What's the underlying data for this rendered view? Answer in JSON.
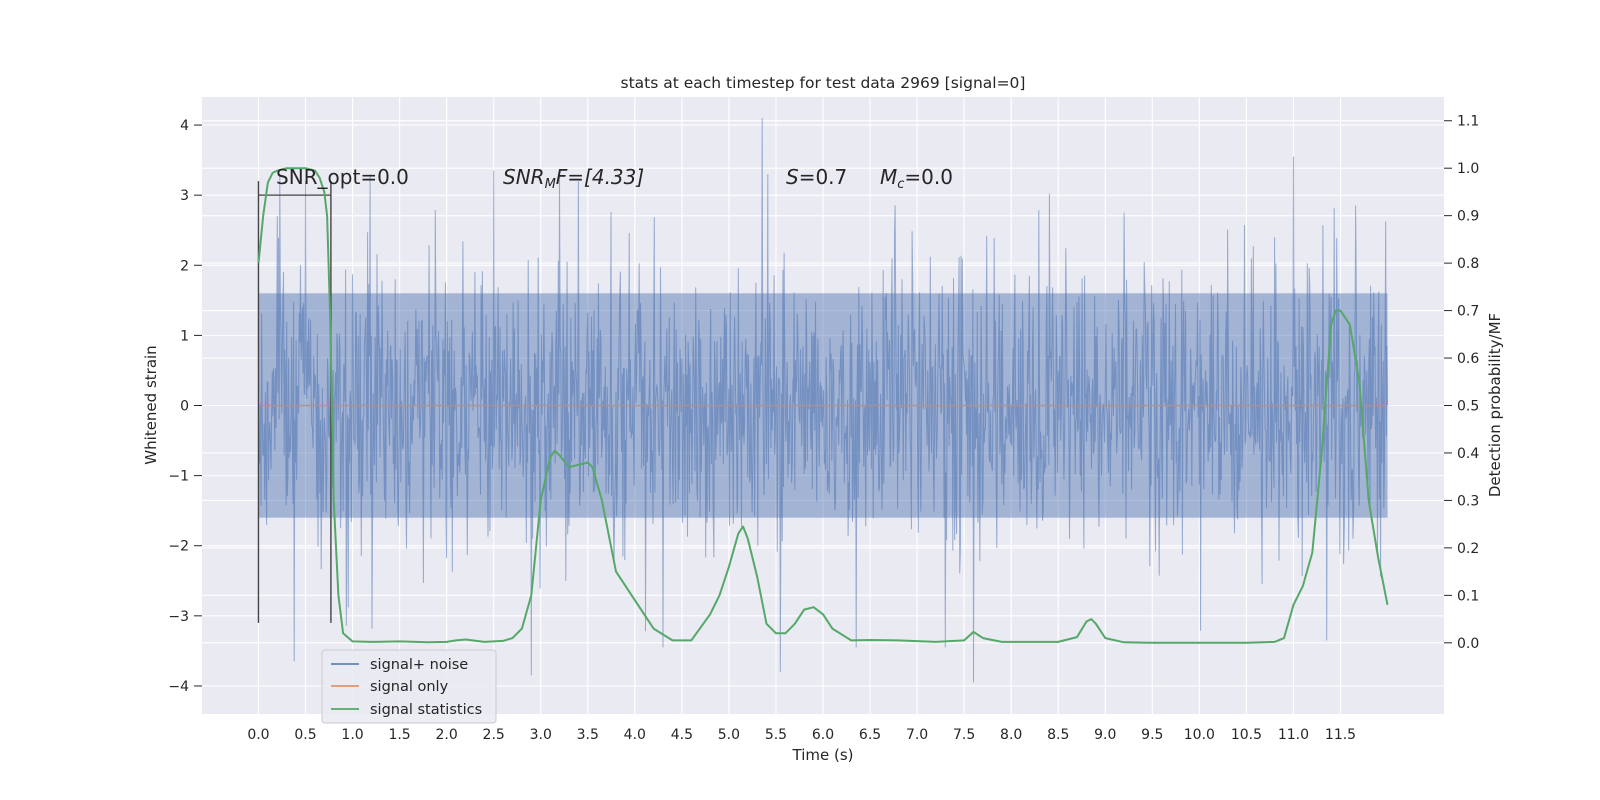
{
  "chart_data": {
    "type": "line",
    "title": "stats at each timestep for test data 2969 [signal=0]",
    "xlabel": "Time (s)",
    "ylabel": "Whitened strain",
    "ylabel_right": "Detection probability/MF",
    "xlim": [
      -0.6,
      12.6
    ],
    "ylim": [
      -4.4,
      4.4
    ],
    "ylim_right": [
      -0.15,
      1.15
    ],
    "x_ticks": [
      "0.0",
      "0.5",
      "1.0",
      "1.5",
      "2.0",
      "2.5",
      "3.0",
      "3.5",
      "4.0",
      "4.5",
      "5.0",
      "5.5",
      "6.0",
      "6.5",
      "7.0",
      "7.5",
      "8.0",
      "8.5",
      "9.0",
      "9.5",
      "10.0",
      "10.5",
      "11.0",
      "11.5"
    ],
    "y_ticks": [
      "4",
      "3",
      "2",
      "1",
      "0",
      "−1",
      "−2",
      "−3",
      "−4"
    ],
    "y_ticks_right": [
      "1.1",
      "1.0",
      "0.9",
      "0.8",
      "0.7",
      "0.6",
      "0.5",
      "0.4",
      "0.3",
      "0.2",
      "0.1",
      "0.0"
    ],
    "grid": true,
    "legend_position": "lower-left",
    "annotations": {
      "snr_opt": "SNR_opt=0.0",
      "snr_mf_italic": "SNR",
      "snr_mf_sub": "M",
      "snr_mf_rest": "F=[4.33]",
      "s_italic": "S",
      "s_rest": "=0.7",
      "mc_italic": "M",
      "mc_sub": "c",
      "mc_rest": "=0.0"
    },
    "markers": {
      "vertical_lines_x": [
        0.0,
        0.77
      ],
      "vertical_line_ylim": [
        -3.1,
        3.2
      ],
      "bracket_y": 3.0
    },
    "series": [
      {
        "name": "signal+ noise",
        "color": "#4c72b0",
        "description_values": "noise band",
        "x_range": [
          0.0,
          12.0
        ],
        "envelope_typical": [
          -1.6,
          1.6
        ],
        "extremes": [
          {
            "x": 0.2,
            "y": 2.7
          },
          {
            "x": 0.38,
            "y": -3.65
          },
          {
            "x": 0.5,
            "y": 3.2
          },
          {
            "x": 2.5,
            "y": 3.35
          },
          {
            "x": 2.9,
            "y": -3.85
          },
          {
            "x": 3.2,
            "y": 3.3
          },
          {
            "x": 3.4,
            "y": 3.2
          },
          {
            "x": 4.3,
            "y": -3.45
          },
          {
            "x": 5.35,
            "y": 4.1
          },
          {
            "x": 5.55,
            "y": -3.8
          },
          {
            "x": 6.35,
            "y": -3.45
          },
          {
            "x": 7.6,
            "y": -3.95
          },
          {
            "x": 7.3,
            "y": -3.45
          },
          {
            "x": 11.0,
            "y": 3.55
          },
          {
            "x": 11.35,
            "y": -3.35
          }
        ]
      },
      {
        "name": "signal only",
        "color": "#dd8452",
        "x": [
          0.0,
          12.0
        ],
        "y": [
          0.0,
          0.0
        ]
      },
      {
        "name": "signal statistics",
        "color": "#55a868",
        "axis": "right",
        "x": [
          0.0,
          0.05,
          0.1,
          0.15,
          0.2,
          0.3,
          0.4,
          0.5,
          0.6,
          0.65,
          0.7,
          0.73,
          0.76,
          0.8,
          0.85,
          0.9,
          1.0,
          1.2,
          1.5,
          1.8,
          2.0,
          2.1,
          2.2,
          2.4,
          2.6,
          2.7,
          2.8,
          2.9,
          3.0,
          3.1,
          3.15,
          3.2,
          3.3,
          3.4,
          3.5,
          3.55,
          3.65,
          3.8,
          4.0,
          4.2,
          4.4,
          4.6,
          4.8,
          4.9,
          5.0,
          5.1,
          5.15,
          5.2,
          5.3,
          5.4,
          5.5,
          5.6,
          5.7,
          5.8,
          5.9,
          6.0,
          6.1,
          6.3,
          6.5,
          6.8,
          7.2,
          7.5,
          7.6,
          7.7,
          7.9,
          8.2,
          8.5,
          8.7,
          8.8,
          8.85,
          8.9,
          9.0,
          9.2,
          9.5,
          10.0,
          10.5,
          10.8,
          10.9,
          11.0,
          11.1,
          11.2,
          11.3,
          11.4,
          11.45,
          11.5,
          11.6,
          11.7,
          11.8,
          11.9,
          12.0
        ],
        "y": [
          0.8,
          0.9,
          0.97,
          0.99,
          0.995,
          1.0,
          1.0,
          1.0,
          0.995,
          0.98,
          0.95,
          0.9,
          0.7,
          0.3,
          0.1,
          0.02,
          0.003,
          0.002,
          0.003,
          0.001,
          0.002,
          0.005,
          0.007,
          0.002,
          0.004,
          0.01,
          0.03,
          0.1,
          0.3,
          0.39,
          0.405,
          0.395,
          0.37,
          0.375,
          0.38,
          0.37,
          0.3,
          0.15,
          0.09,
          0.03,
          0.005,
          0.005,
          0.06,
          0.1,
          0.16,
          0.23,
          0.245,
          0.22,
          0.14,
          0.04,
          0.02,
          0.02,
          0.04,
          0.07,
          0.075,
          0.06,
          0.03,
          0.005,
          0.006,
          0.005,
          0.002,
          0.005,
          0.023,
          0.01,
          0.002,
          0.002,
          0.002,
          0.012,
          0.045,
          0.05,
          0.04,
          0.01,
          0.001,
          0.0,
          0.0,
          0.0,
          0.002,
          0.01,
          0.08,
          0.12,
          0.19,
          0.4,
          0.67,
          0.7,
          0.7,
          0.67,
          0.55,
          0.3,
          0.18,
          0.08
        ]
      }
    ]
  }
}
